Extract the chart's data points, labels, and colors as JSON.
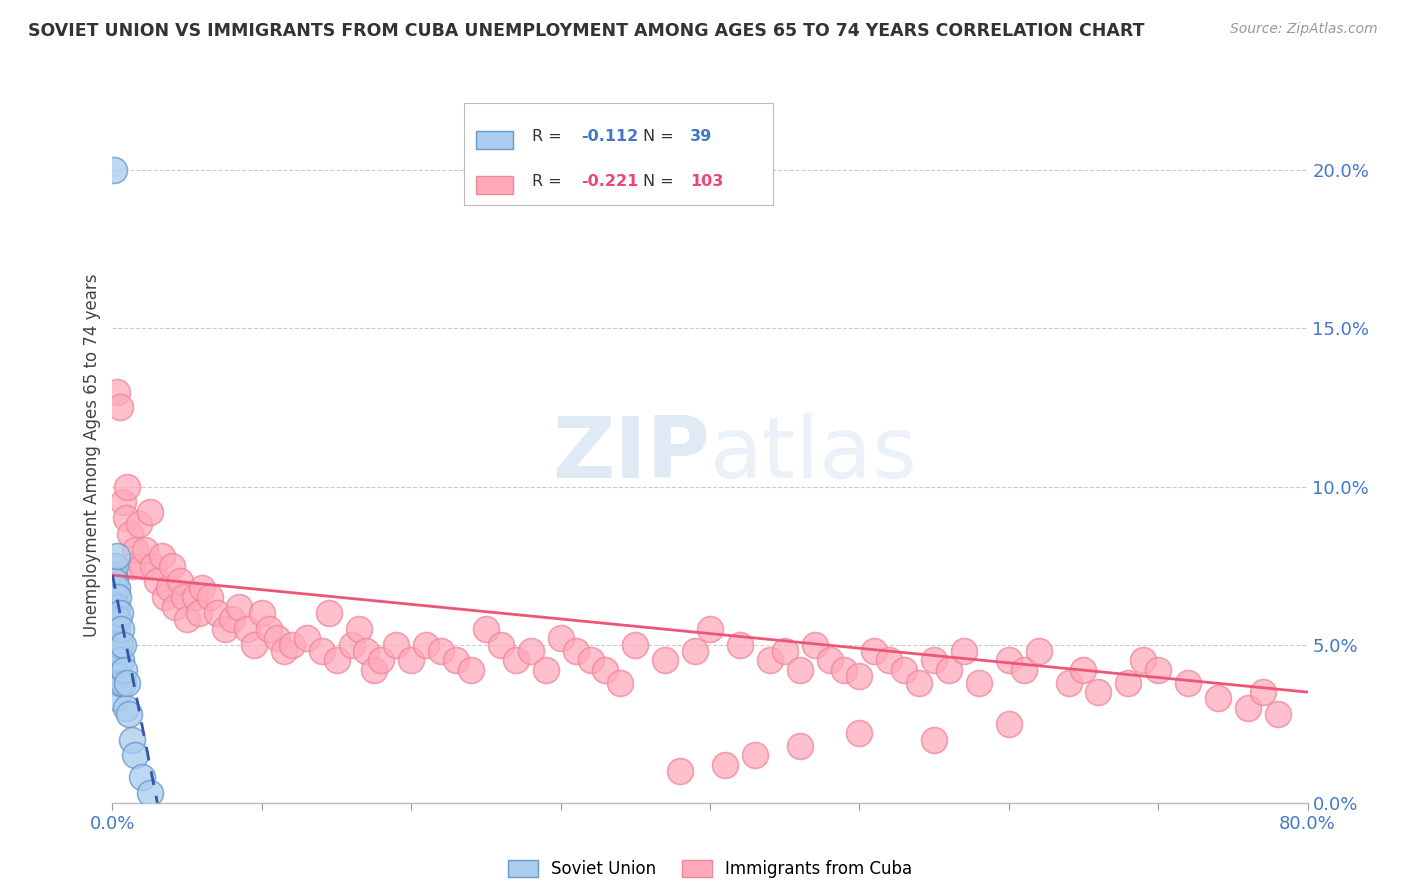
{
  "title": "SOVIET UNION VS IMMIGRANTS FROM CUBA UNEMPLOYMENT AMONG AGES 65 TO 74 YEARS CORRELATION CHART",
  "source": "Source: ZipAtlas.com",
  "ylabel": "Unemployment Among Ages 65 to 74 years",
  "xlim": [
    0.0,
    0.8
  ],
  "ylim": [
    0.0,
    0.22
  ],
  "xticks": [
    0.0,
    0.1,
    0.2,
    0.3,
    0.4,
    0.5,
    0.6,
    0.7,
    0.8
  ],
  "xticklabels": [
    "0.0%",
    "",
    "",
    "",
    "",
    "",
    "",
    "",
    "80.0%"
  ],
  "yticks_right": [
    0.0,
    0.05,
    0.1,
    0.15,
    0.2
  ],
  "yticks_right_labels": [
    "0.0%",
    "5.0%",
    "10.0%",
    "15.0%",
    "20.0%"
  ],
  "soviet_R": -0.112,
  "soviet_N": 39,
  "cuba_R": -0.221,
  "cuba_N": 103,
  "soviet_color": "#aaccee",
  "soviet_edge_color": "#6699cc",
  "cuba_color": "#ffaabb",
  "cuba_edge_color": "#ee8899",
  "soviet_trend_color": "#3355aa",
  "cuba_trend_color": "#ee5577",
  "background_color": "#ffffff",
  "grid_color": "#cccccc",
  "watermark": "ZIPatlas",
  "soviet_x": [
    0.001,
    0.001,
    0.001,
    0.001,
    0.001,
    0.001,
    0.001,
    0.002,
    0.002,
    0.002,
    0.002,
    0.002,
    0.002,
    0.003,
    0.003,
    0.003,
    0.003,
    0.003,
    0.003,
    0.003,
    0.004,
    0.004,
    0.004,
    0.004,
    0.005,
    0.005,
    0.005,
    0.006,
    0.006,
    0.007,
    0.007,
    0.008,
    0.009,
    0.01,
    0.011,
    0.013,
    0.015,
    0.02,
    0.025
  ],
  "soviet_y": [
    0.2,
    0.068,
    0.063,
    0.058,
    0.072,
    0.065,
    0.055,
    0.075,
    0.07,
    0.062,
    0.058,
    0.05,
    0.045,
    0.078,
    0.068,
    0.062,
    0.055,
    0.048,
    0.04,
    0.033,
    0.065,
    0.058,
    0.048,
    0.04,
    0.06,
    0.05,
    0.038,
    0.055,
    0.045,
    0.05,
    0.038,
    0.042,
    0.03,
    0.038,
    0.028,
    0.02,
    0.015,
    0.008,
    0.003
  ],
  "cuba_x": [
    0.003,
    0.005,
    0.007,
    0.009,
    0.01,
    0.012,
    0.013,
    0.015,
    0.018,
    0.02,
    0.022,
    0.025,
    0.027,
    0.03,
    0.033,
    0.035,
    0.038,
    0.04,
    0.042,
    0.045,
    0.048,
    0.05,
    0.055,
    0.058,
    0.06,
    0.065,
    0.07,
    0.075,
    0.08,
    0.085,
    0.09,
    0.095,
    0.1,
    0.105,
    0.11,
    0.115,
    0.12,
    0.13,
    0.14,
    0.145,
    0.15,
    0.16,
    0.165,
    0.17,
    0.175,
    0.18,
    0.19,
    0.2,
    0.21,
    0.22,
    0.23,
    0.24,
    0.25,
    0.26,
    0.27,
    0.28,
    0.29,
    0.3,
    0.31,
    0.32,
    0.33,
    0.34,
    0.35,
    0.37,
    0.39,
    0.4,
    0.42,
    0.44,
    0.45,
    0.46,
    0.47,
    0.48,
    0.49,
    0.5,
    0.51,
    0.52,
    0.53,
    0.54,
    0.55,
    0.56,
    0.57,
    0.58,
    0.6,
    0.61,
    0.62,
    0.64,
    0.65,
    0.66,
    0.68,
    0.69,
    0.7,
    0.72,
    0.74,
    0.76,
    0.77,
    0.78,
    0.6,
    0.55,
    0.5,
    0.46,
    0.43,
    0.41,
    0.38
  ],
  "cuba_y": [
    0.13,
    0.125,
    0.095,
    0.09,
    0.1,
    0.085,
    0.075,
    0.08,
    0.088,
    0.075,
    0.08,
    0.092,
    0.075,
    0.07,
    0.078,
    0.065,
    0.068,
    0.075,
    0.062,
    0.07,
    0.065,
    0.058,
    0.065,
    0.06,
    0.068,
    0.065,
    0.06,
    0.055,
    0.058,
    0.062,
    0.055,
    0.05,
    0.06,
    0.055,
    0.052,
    0.048,
    0.05,
    0.052,
    0.048,
    0.06,
    0.045,
    0.05,
    0.055,
    0.048,
    0.042,
    0.045,
    0.05,
    0.045,
    0.05,
    0.048,
    0.045,
    0.042,
    0.055,
    0.05,
    0.045,
    0.048,
    0.042,
    0.052,
    0.048,
    0.045,
    0.042,
    0.038,
    0.05,
    0.045,
    0.048,
    0.055,
    0.05,
    0.045,
    0.048,
    0.042,
    0.05,
    0.045,
    0.042,
    0.04,
    0.048,
    0.045,
    0.042,
    0.038,
    0.045,
    0.042,
    0.048,
    0.038,
    0.045,
    0.042,
    0.048,
    0.038,
    0.042,
    0.035,
    0.038,
    0.045,
    0.042,
    0.038,
    0.033,
    0.03,
    0.035,
    0.028,
    0.025,
    0.02,
    0.022,
    0.018,
    0.015,
    0.012,
    0.01
  ]
}
